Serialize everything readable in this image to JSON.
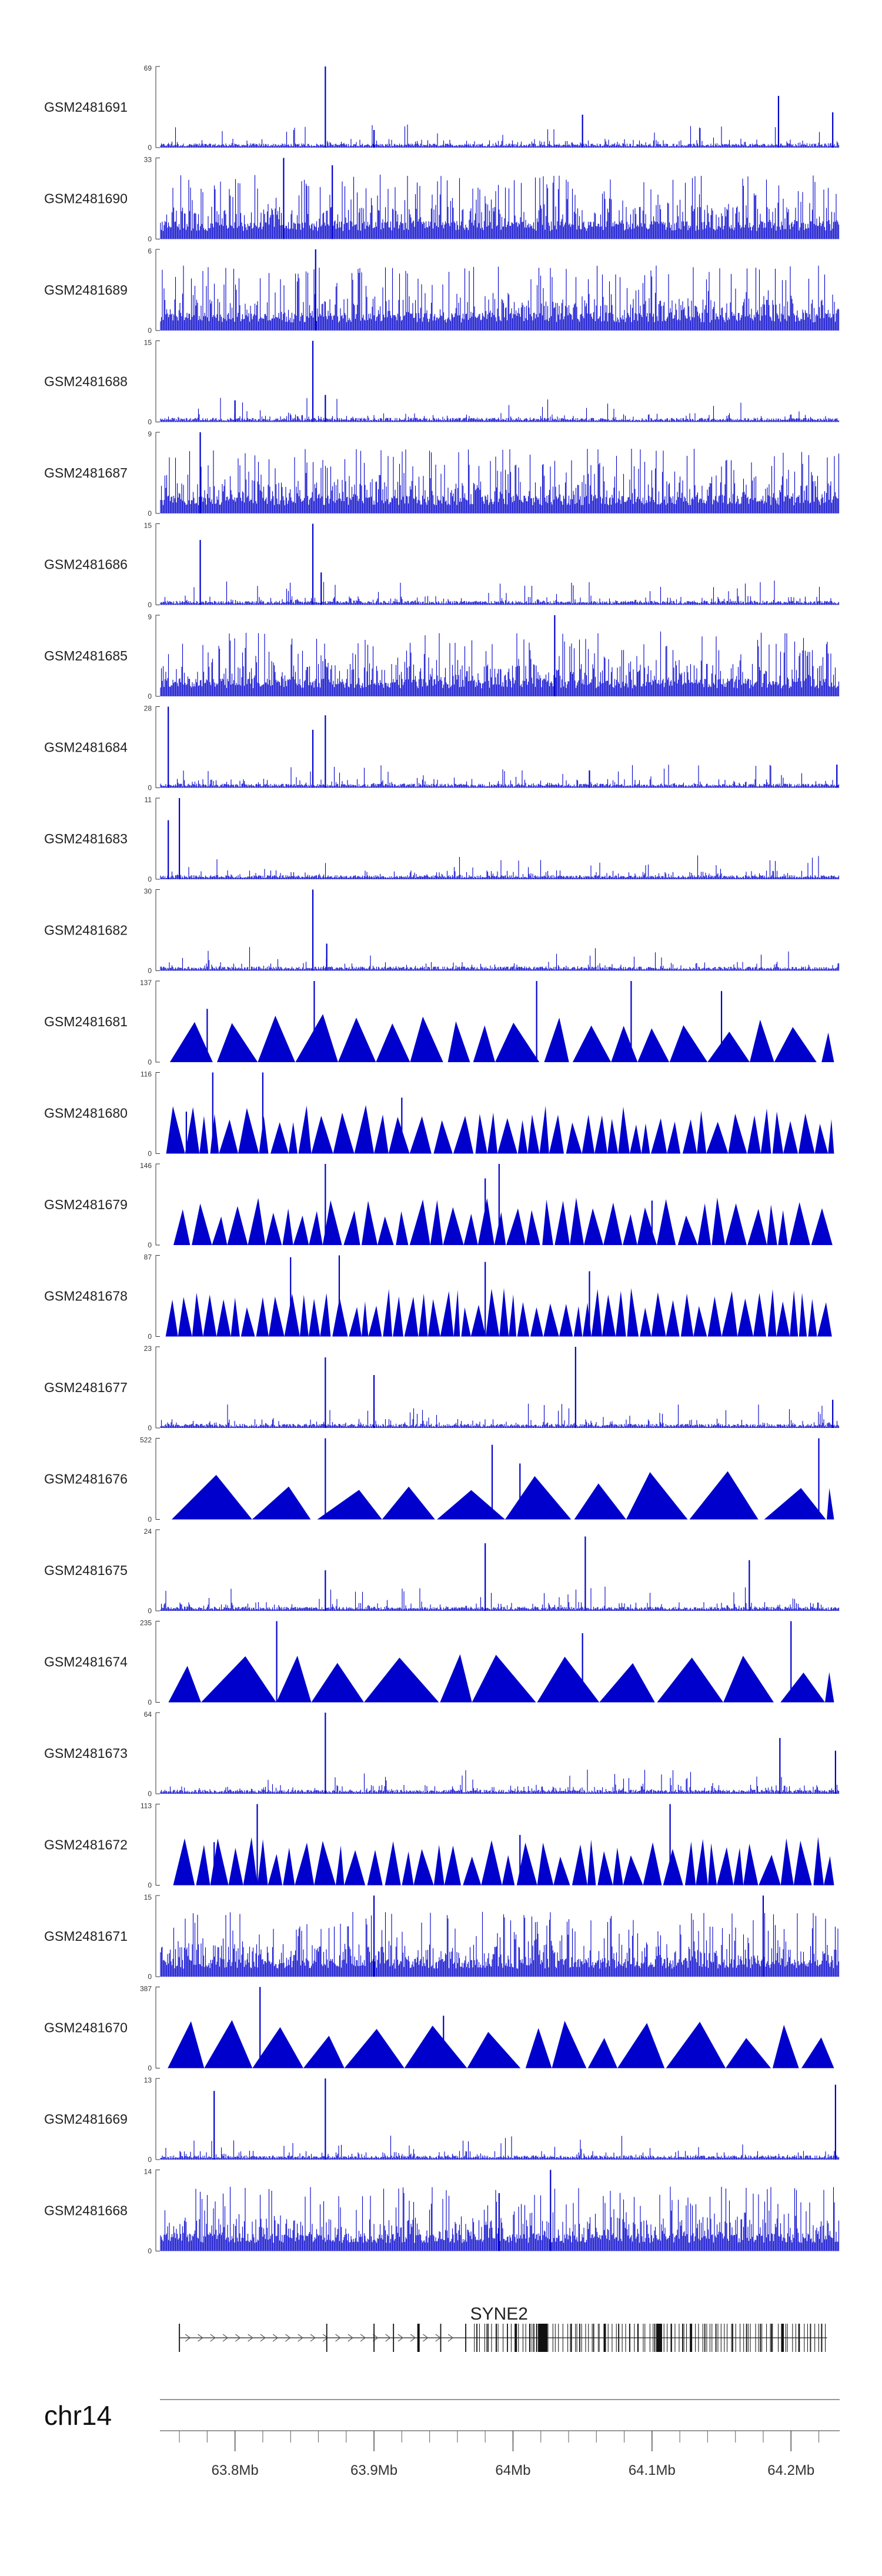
{
  "chart_data": {
    "type": "genome-browser",
    "chromosome": "chr14",
    "x_range_mb": [
      63.746,
      64.235
    ],
    "bar_color": "#0000cc",
    "axis_color": "#333333",
    "tracks": [
      {
        "name": "GSM2481691",
        "ymax": "69",
        "ymin": "0",
        "style": "spiky",
        "peaks": [
          [
            63.865,
            69
          ],
          [
            64.191,
            44
          ],
          [
            64.23,
            30
          ],
          [
            63.9,
            15
          ],
          [
            64.05,
            28
          ]
        ]
      },
      {
        "name": "GSM2481690",
        "ymax": "33",
        "ymin": "0",
        "style": "dense",
        "peaks": [
          [
            63.835,
            33
          ],
          [
            63.87,
            30
          ]
        ]
      },
      {
        "name": "GSM2481689",
        "ymax": "6",
        "ymin": "0",
        "style": "dense",
        "peaks": [
          [
            63.858,
            6
          ]
        ]
      },
      {
        "name": "GSM2481688",
        "ymax": "15",
        "ymin": "0",
        "style": "spiky",
        "peaks": [
          [
            63.856,
            15
          ],
          [
            63.865,
            5
          ],
          [
            63.8,
            4
          ]
        ]
      },
      {
        "name": "GSM2481687",
        "ymax": "9",
        "ymin": "0",
        "style": "dense",
        "peaks": [
          [
            63.775,
            9
          ]
        ]
      },
      {
        "name": "GSM2481686",
        "ymax": "15",
        "ymin": "0",
        "style": "spiky",
        "peaks": [
          [
            63.775,
            12
          ],
          [
            63.856,
            15
          ],
          [
            63.862,
            6
          ]
        ]
      },
      {
        "name": "GSM2481685",
        "ymax": "9",
        "ymin": "0",
        "style": "dense",
        "peaks": [
          [
            64.03,
            9
          ]
        ]
      },
      {
        "name": "GSM2481684",
        "ymax": "28",
        "ymin": "0",
        "style": "spiky",
        "peaks": [
          [
            63.752,
            28
          ],
          [
            63.856,
            20
          ],
          [
            63.865,
            25
          ],
          [
            64.055,
            6
          ],
          [
            64.233,
            8
          ]
        ]
      },
      {
        "name": "GSM2481683",
        "ymax": "11",
        "ymin": "0",
        "style": "spiky",
        "peaks": [
          [
            63.76,
            11
          ],
          [
            63.752,
            8
          ]
        ]
      },
      {
        "name": "GSM2481682",
        "ymax": "30",
        "ymin": "0",
        "style": "spiky",
        "peaks": [
          [
            63.856,
            30
          ],
          [
            63.866,
            10
          ]
        ]
      },
      {
        "name": "GSM2481681",
        "ymax": "137",
        "ymin": "0",
        "style": "triangles",
        "seg": 0.024,
        "peaks": [
          [
            63.857,
            137
          ],
          [
            64.017,
            137
          ],
          [
            64.085,
            137
          ],
          [
            63.78,
            90
          ],
          [
            64.15,
            120
          ]
        ]
      },
      {
        "name": "GSM2481680",
        "ymax": "116",
        "ymin": "0",
        "style": "triangles",
        "seg": 0.011,
        "peaks": [
          [
            63.784,
            116
          ],
          [
            63.82,
            116
          ],
          [
            63.92,
            80
          ],
          [
            63.765,
            60
          ]
        ]
      },
      {
        "name": "GSM2481679",
        "ymax": "146",
        "ymin": "0",
        "style": "triangles",
        "seg": 0.011,
        "peaks": [
          [
            63.865,
            146
          ],
          [
            63.99,
            146
          ],
          [
            63.98,
            120
          ],
          [
            64.1,
            80
          ]
        ]
      },
      {
        "name": "GSM2481678",
        "ymax": "87",
        "ymin": "0",
        "style": "triangles",
        "seg": 0.008,
        "peaks": [
          [
            63.875,
            87
          ],
          [
            63.84,
            85
          ],
          [
            63.98,
            80
          ],
          [
            64.055,
            70
          ]
        ]
      },
      {
        "name": "GSM2481677",
        "ymax": "23",
        "ymin": "0",
        "style": "spiky",
        "peaks": [
          [
            63.865,
            20
          ],
          [
            64.045,
            23
          ],
          [
            63.9,
            15
          ],
          [
            64.23,
            8
          ]
        ]
      },
      {
        "name": "GSM2481676",
        "ymax": "522",
        "ymin": "0",
        "style": "triangles",
        "seg": 0.044,
        "peaks": [
          [
            63.865,
            522
          ],
          [
            64.22,
            522
          ],
          [
            63.985,
            480
          ],
          [
            64.005,
            360
          ]
        ]
      },
      {
        "name": "GSM2481675",
        "ymax": "24",
        "ymin": "0",
        "style": "spiky",
        "peaks": [
          [
            64.052,
            22
          ],
          [
            63.98,
            20
          ],
          [
            63.865,
            12
          ],
          [
            64.17,
            15
          ]
        ]
      },
      {
        "name": "GSM2481674",
        "ymax": "235",
        "ymin": "0",
        "style": "triangles",
        "seg": 0.038,
        "peaks": [
          [
            63.83,
            235
          ],
          [
            64.2,
            235
          ],
          [
            64.05,
            200
          ]
        ]
      },
      {
        "name": "GSM2481673",
        "ymax": "64",
        "ymin": "0",
        "style": "spiky",
        "peaks": [
          [
            63.865,
            64
          ],
          [
            64.192,
            44
          ],
          [
            64.232,
            34
          ]
        ]
      },
      {
        "name": "GSM2481672",
        "ymax": "113",
        "ymin": "0",
        "style": "triangles",
        "seg": 0.011,
        "peaks": [
          [
            63.816,
            113
          ],
          [
            64.113,
            113
          ],
          [
            64.005,
            70
          ],
          [
            63.785,
            60
          ]
        ]
      },
      {
        "name": "GSM2481671",
        "ymax": "15",
        "ymin": "0",
        "style": "dense",
        "peaks": [
          [
            63.9,
            15
          ],
          [
            64.18,
            15
          ]
        ]
      },
      {
        "name": "GSM2481670",
        "ymax": "387",
        "ymin": "0",
        "style": "triangles",
        "seg": 0.032,
        "peaks": [
          [
            63.818,
            387
          ],
          [
            63.95,
            250
          ]
        ]
      },
      {
        "name": "GSM2481669",
        "ymax": "13",
        "ymin": "0",
        "style": "spiky",
        "peaks": [
          [
            63.865,
            13
          ],
          [
            63.785,
            11
          ],
          [
            64.232,
            12
          ]
        ]
      },
      {
        "name": "GSM2481668",
        "ymax": "14",
        "ymin": "0",
        "style": "dense",
        "peaks": [
          [
            64.027,
            14
          ],
          [
            63.99,
            10
          ]
        ]
      }
    ],
    "gene": {
      "name": "SYNE2",
      "start_mb": 63.76,
      "end_mb": 64.226,
      "strand": "+",
      "exons_mb": [
        63.866,
        63.9,
        63.914,
        63.932,
        63.948,
        63.966,
        63.974,
        63.982,
        63.988,
        63.996,
        64.002,
        64.012,
        64.015,
        64.017,
        64.042,
        64.048,
        64.058,
        64.066,
        64.076,
        64.084,
        64.09,
        64.102,
        64.114,
        64.122,
        64.128,
        64.138,
        64.146,
        64.158,
        64.168,
        64.178,
        64.186,
        64.194,
        64.206,
        64.214,
        64.222
      ]
    },
    "axis": {
      "ticks_mb": [
        63.8,
        63.9,
        64.0,
        64.1,
        64.2
      ],
      "tick_labels": [
        "63.8Mb",
        "63.9Mb",
        "64Mb",
        "64.1Mb",
        "64.2Mb"
      ],
      "minor_step_mb": 0.02
    }
  }
}
